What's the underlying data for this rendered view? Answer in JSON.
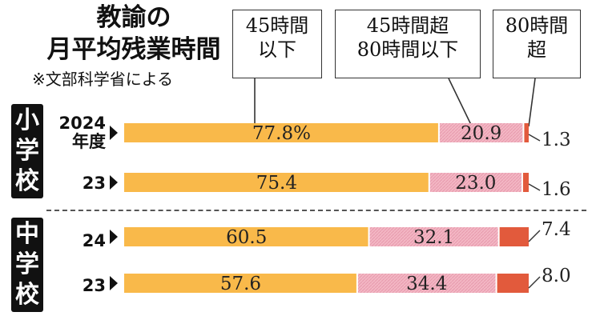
{
  "title": [
    "教諭の",
    "月平均残業時間"
  ],
  "source": "※文部科学省による",
  "chart_data": {
    "type": "bar",
    "stacked": true,
    "orientation": "horizontal",
    "legend_style": "callouts",
    "series": [
      {
        "name": [
          "45時間",
          "以下"
        ],
        "color": "#f9b94a",
        "values": [
          77.8,
          75.4,
          60.5,
          57.6
        ]
      },
      {
        "name": [
          "45時間超",
          "80時間以下"
        ],
        "color": "#f3b7c4",
        "values": [
          20.9,
          23.0,
          32.1,
          34.4
        ]
      },
      {
        "name": [
          "80時間",
          "超"
        ],
        "color": "#e25a3c",
        "values": [
          1.3,
          1.6,
          7.4,
          8.0
        ]
      }
    ],
    "value_labels": [
      [
        "77.8%",
        "20.9",
        "1.3"
      ],
      [
        "75.4",
        "23.0",
        "1.6"
      ],
      [
        "60.5",
        "32.1",
        "7.4"
      ],
      [
        "57.6",
        "34.4",
        "8.0"
      ]
    ],
    "groups": [
      {
        "name": [
          "小",
          "学",
          "校"
        ],
        "rows": [
          0,
          1
        ]
      },
      {
        "name": [
          "中",
          "学",
          "校"
        ],
        "rows": [
          2,
          3
        ]
      }
    ],
    "categories": [
      [
        "2024",
        "年度"
      ],
      [
        "23"
      ],
      [
        "24"
      ],
      [
        "23"
      ]
    ],
    "xlim": [
      0,
      100
    ]
  }
}
